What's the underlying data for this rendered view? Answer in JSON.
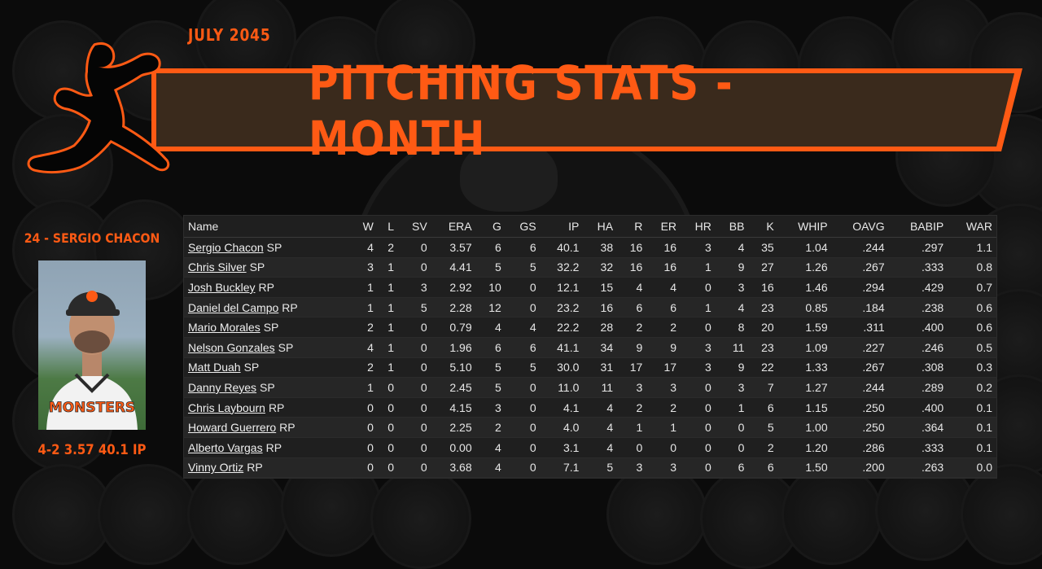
{
  "header": {
    "month": "JULY  2045",
    "title": "PITCHING STATS - MONTH"
  },
  "colors": {
    "accent": "#ff5a14",
    "banner": "#3a2a1c",
    "background": "#0b0b0b"
  },
  "featured": {
    "name": "24 - SERGIO CHACON",
    "line": "4-2  3.57  40.1 IP",
    "jersey_text": "MONSTERS"
  },
  "table": {
    "columns": [
      "Name",
      "W",
      "L",
      "SV",
      "ERA",
      "G",
      "GS",
      "IP",
      "HA",
      "R",
      "ER",
      "HR",
      "BB",
      "K",
      "WHIP",
      "OAVG",
      "BABIP",
      "WAR"
    ],
    "rows": [
      {
        "name": "Sergio Chacon",
        "pos": "SP",
        "stats": [
          "4",
          "2",
          "0",
          "3.57",
          "6",
          "6",
          "40.1",
          "38",
          "16",
          "16",
          "3",
          "4",
          "35",
          "1.04",
          ".244",
          ".297",
          "1.1"
        ]
      },
      {
        "name": "Chris Silver",
        "pos": "SP",
        "stats": [
          "3",
          "1",
          "0",
          "4.41",
          "5",
          "5",
          "32.2",
          "32",
          "16",
          "16",
          "1",
          "9",
          "27",
          "1.26",
          ".267",
          ".333",
          "0.8"
        ]
      },
      {
        "name": "Josh Buckley",
        "pos": "RP",
        "stats": [
          "1",
          "1",
          "3",
          "2.92",
          "10",
          "0",
          "12.1",
          "15",
          "4",
          "4",
          "0",
          "3",
          "16",
          "1.46",
          ".294",
          ".429",
          "0.7"
        ]
      },
      {
        "name": "Daniel del Campo",
        "pos": "RP",
        "stats": [
          "1",
          "1",
          "5",
          "2.28",
          "12",
          "0",
          "23.2",
          "16",
          "6",
          "6",
          "1",
          "4",
          "23",
          "0.85",
          ".184",
          ".238",
          "0.6"
        ]
      },
      {
        "name": "Mario Morales",
        "pos": "SP",
        "stats": [
          "2",
          "1",
          "0",
          "0.79",
          "4",
          "4",
          "22.2",
          "28",
          "2",
          "2",
          "0",
          "8",
          "20",
          "1.59",
          ".311",
          ".400",
          "0.6"
        ]
      },
      {
        "name": "Nelson Gonzales",
        "pos": "SP",
        "stats": [
          "4",
          "1",
          "0",
          "1.96",
          "6",
          "6",
          "41.1",
          "34",
          "9",
          "9",
          "3",
          "11",
          "23",
          "1.09",
          ".227",
          ".246",
          "0.5"
        ]
      },
      {
        "name": "Matt Duah",
        "pos": "SP",
        "stats": [
          "2",
          "1",
          "0",
          "5.10",
          "5",
          "5",
          "30.0",
          "31",
          "17",
          "17",
          "3",
          "9",
          "22",
          "1.33",
          ".267",
          ".308",
          "0.3"
        ]
      },
      {
        "name": "Danny Reyes",
        "pos": "SP",
        "stats": [
          "1",
          "0",
          "0",
          "2.45",
          "5",
          "0",
          "11.0",
          "11",
          "3",
          "3",
          "0",
          "3",
          "7",
          "1.27",
          ".244",
          ".289",
          "0.2"
        ]
      },
      {
        "name": "Chris Laybourn",
        "pos": "RP",
        "stats": [
          "0",
          "0",
          "0",
          "4.15",
          "3",
          "0",
          "4.1",
          "4",
          "2",
          "2",
          "0",
          "1",
          "6",
          "1.15",
          ".250",
          ".400",
          "0.1"
        ]
      },
      {
        "name": "Howard Guerrero",
        "pos": "RP",
        "stats": [
          "0",
          "0",
          "0",
          "2.25",
          "2",
          "0",
          "4.0",
          "4",
          "1",
          "1",
          "0",
          "0",
          "5",
          "1.00",
          ".250",
          ".364",
          "0.1"
        ]
      },
      {
        "name": "Alberto Vargas",
        "pos": "RP",
        "stats": [
          "0",
          "0",
          "0",
          "0.00",
          "4",
          "0",
          "3.1",
          "4",
          "0",
          "0",
          "0",
          "0",
          "2",
          "1.20",
          ".286",
          ".333",
          "0.1"
        ]
      },
      {
        "name": "Vinny Ortiz",
        "pos": "RP",
        "stats": [
          "0",
          "0",
          "0",
          "3.68",
          "4",
          "0",
          "7.1",
          "5",
          "3",
          "3",
          "0",
          "6",
          "6",
          "1.50",
          ".200",
          ".263",
          "0.0"
        ]
      }
    ]
  }
}
